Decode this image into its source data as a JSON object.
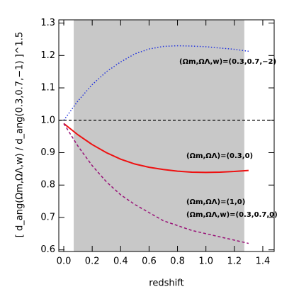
{
  "chart_data": {
    "type": "line",
    "xlabel": "redshift",
    "ylabel": "[ d_ang(Ωm,ΩΛ,w) / d_ang(0.3,0.7,−1) ]^1.5",
    "xlim": [
      -0.035,
      1.48
    ],
    "ylim": [
      0.595,
      1.31
    ],
    "xticks": [
      {
        "value": 0,
        "label": "0.0"
      },
      0.2,
      0.4,
      0.6,
      0.8,
      {
        "value": 1,
        "label": "1.0"
      },
      1.2,
      1.4
    ],
    "yticks": [
      0.6,
      0.7,
      0.8,
      0.9,
      {
        "value": 1,
        "label": "1.0"
      },
      1.1,
      1.2,
      1.3
    ],
    "shade": [
      0.07,
      1.27
    ],
    "shade_color": "#c8c8c8",
    "hline": 1.0,
    "x": [
      0,
      0.1,
      0.2,
      0.3,
      0.4,
      0.5,
      0.6,
      0.7,
      0.8,
      0.9,
      1.0,
      1.1,
      1.2,
      1.3
    ],
    "series": [
      {
        "color": "#2233dd",
        "dash": "1.5 2.5",
        "values": [
          1.0,
          1.06,
          1.11,
          1.15,
          1.18,
          1.205,
          1.22,
          1.228,
          1.23,
          1.229,
          1.227,
          1.223,
          1.219,
          1.213
        ]
      },
      {
        "color": "#ee1111",
        "dash": "none",
        "values": [
          0.99,
          0.955,
          0.925,
          0.9,
          0.88,
          0.865,
          0.855,
          0.848,
          0.843,
          0.84,
          0.839,
          0.84,
          0.842,
          0.845
        ]
      },
      {
        "color": "#991177",
        "dash": "4 3",
        "values": [
          0.99,
          0.92,
          0.86,
          0.81,
          0.77,
          0.74,
          0.715,
          0.69,
          0.675,
          0.66,
          0.65,
          0.64,
          0.63,
          0.62
        ]
      }
    ],
    "annotations": [
      "(Ωm,ΩΛ,w)=(0.3,0.7,−2)",
      "(Ωm,ΩΛ)=(0.3,0)",
      "(Ωm,ΩΛ)=(1,0)",
      "(Ωm,ΩΛ,w)=(0.3,0.7,0)"
    ]
  }
}
